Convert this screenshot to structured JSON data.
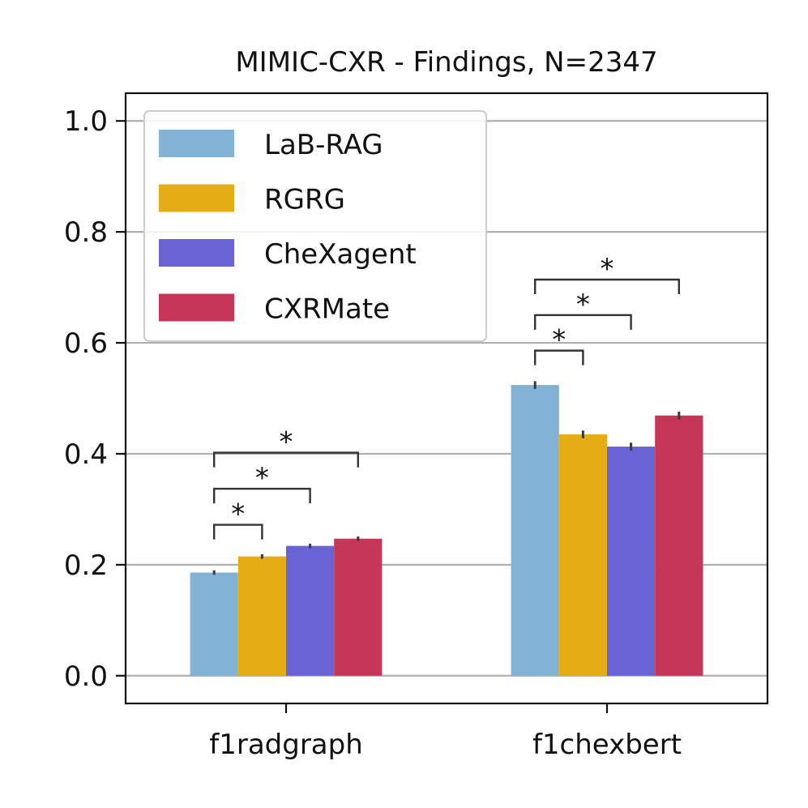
{
  "chart_data": {
    "type": "bar",
    "title": "MIMIC-CXR - Findings, N=2347",
    "xlabel": "",
    "ylabel": "",
    "ylim": [
      -0.05,
      1.05
    ],
    "yticks": [
      0.0,
      0.2,
      0.4,
      0.6,
      0.8,
      1.0
    ],
    "ytick_labels": [
      "0.0",
      "0.2",
      "0.4",
      "0.6",
      "0.8",
      "1.0"
    ],
    "grid": "horizontal",
    "legend_position": "top-left",
    "categories": [
      "f1radgraph",
      "f1chexbert"
    ],
    "series": [
      {
        "name": "LaB-RAG",
        "color": "#82b2d4",
        "values": [
          0.186,
          0.524
        ],
        "errors": [
          0.004,
          0.007
        ]
      },
      {
        "name": "RGRG",
        "color": "#e5ac14",
        "values": [
          0.215,
          0.435
        ],
        "errors": [
          0.004,
          0.007
        ]
      },
      {
        "name": "CheXagent",
        "color": "#6a63d3",
        "values": [
          0.234,
          0.413
        ],
        "errors": [
          0.004,
          0.007
        ]
      },
      {
        "name": "CXRMate",
        "color": "#c53659",
        "values": [
          0.247,
          0.469
        ],
        "errors": [
          0.004,
          0.007
        ]
      }
    ],
    "significance": [
      {
        "category": 0,
        "from_series": 0,
        "to_series": 1,
        "y": 0.272,
        "label": "*"
      },
      {
        "category": 0,
        "from_series": 0,
        "to_series": 2,
        "y": 0.337,
        "label": "*"
      },
      {
        "category": 0,
        "from_series": 0,
        "to_series": 3,
        "y": 0.402,
        "label": "*"
      },
      {
        "category": 1,
        "from_series": 0,
        "to_series": 1,
        "y": 0.586,
        "label": "*"
      },
      {
        "category": 1,
        "from_series": 0,
        "to_series": 2,
        "y": 0.65,
        "label": "*"
      },
      {
        "category": 1,
        "from_series": 0,
        "to_series": 3,
        "y": 0.714,
        "label": "*"
      }
    ]
  }
}
